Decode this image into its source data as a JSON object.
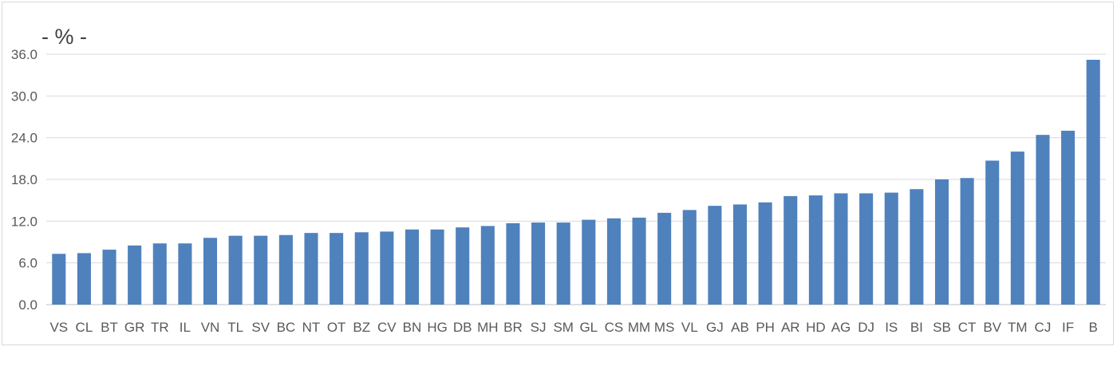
{
  "chart_data": {
    "type": "bar",
    "unit_label": "- % -",
    "categories": [
      "VS",
      "CL",
      "BT",
      "GR",
      "TR",
      "IL",
      "VN",
      "TL",
      "SV",
      "BC",
      "NT",
      "OT",
      "BZ",
      "CV",
      "BN",
      "HG",
      "DB",
      "MH",
      "BR",
      "SJ",
      "SM",
      "GL",
      "CS",
      "MM",
      "MS",
      "VL",
      "GJ",
      "AB",
      "PH",
      "AR",
      "HD",
      "AG",
      "DJ",
      "IS",
      "BI",
      "SB",
      "CT",
      "BV",
      "TM",
      "CJ",
      "IF",
      "B"
    ],
    "values": [
      7.3,
      7.4,
      7.9,
      8.5,
      8.8,
      8.8,
      9.6,
      9.9,
      9.9,
      10.0,
      10.3,
      10.3,
      10.4,
      10.5,
      10.8,
      10.8,
      11.1,
      11.3,
      11.7,
      11.8,
      11.8,
      12.2,
      12.4,
      12.5,
      13.2,
      13.6,
      14.2,
      14.4,
      14.7,
      15.6,
      15.7,
      16.0,
      16.0,
      16.1,
      16.6,
      18.0,
      18.2,
      20.7,
      22.0,
      24.4,
      25.0,
      35.2
    ],
    "yticks": [
      "0.0",
      "6.0",
      "12.0",
      "18.0",
      "24.0",
      "30.0",
      "36.0"
    ],
    "ylim": [
      0,
      36
    ],
    "grid": true,
    "color": "#4f81bd"
  }
}
